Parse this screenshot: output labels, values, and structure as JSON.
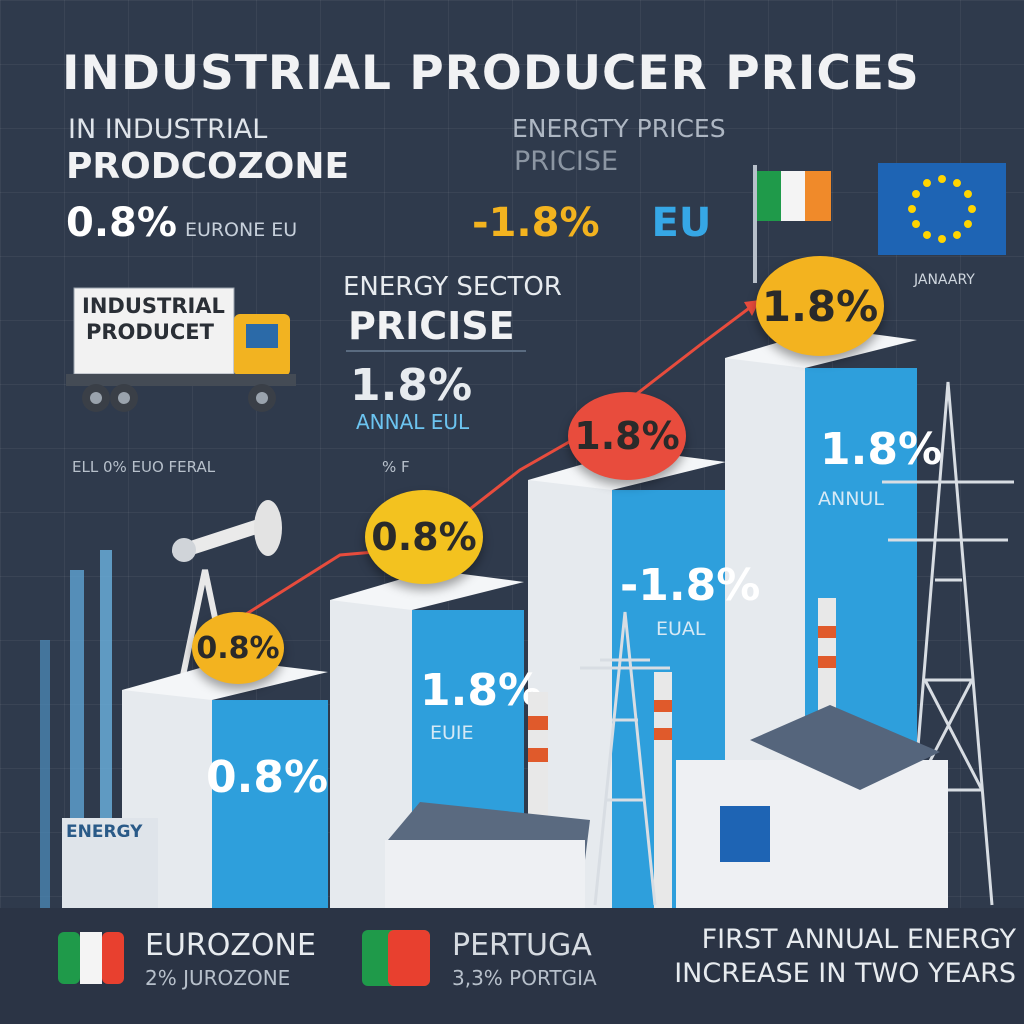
{
  "title": "INDUSTRIAL PRODUCER PRICES",
  "top_left": {
    "line1": "IN INDUSTRIAL",
    "line2": "PRODCOZONE",
    "value": "0.8%",
    "sub": "EURONE EU"
  },
  "top_mid": {
    "line1": "ENERGTY    PRICES",
    "line2": "PRICISE",
    "value": "-1.8%",
    "region": "EU"
  },
  "flag_label": "JANAARY",
  "truck_sign": {
    "line1": "INDUSTRIAL",
    "line2": "PRODUCET"
  },
  "energy_sector": {
    "line1": "ENERGY SECTOR",
    "line2": "PRICISE",
    "value": "1.8%",
    "sub": "ANNAL  EUL"
  },
  "mid_left_label": "ELL 0% EUO FERAL",
  "mid_mid_label": "% F",
  "bars": [
    {
      "value_label": "0.8%",
      "sub_label": "",
      "ball_label": "0.8%",
      "ball_color": "#f3b31f"
    },
    {
      "value_label": "1.8%",
      "sub_label": "EUIE",
      "ball_label": "0.8%",
      "ball_color": "#f3c21f"
    },
    {
      "value_label": "-1.8%",
      "sub_label": "EUAL",
      "ball_label": "1.8%",
      "ball_color": "#e84c3d"
    },
    {
      "value_label": "1.8%",
      "sub_label": "ANNUL",
      "ball_label": "1.8%",
      "ball_color": "#f3b31f"
    }
  ],
  "building_sign": "ENERGY",
  "footer": {
    "left_title": "EUROZONE",
    "left_sub": "2% JUROZONE",
    "mid_title": "PERTUGA",
    "mid_sub": "3,3% PORTGIA",
    "right_line1": "FIRST ANNUAL ENERGY",
    "right_line2": "INCREASE IN TWO YEARS"
  },
  "colors": {
    "background": "#2f3a4c",
    "bar_blue": "#2e9fdc",
    "accent_yellow": "#f3b31f",
    "accent_red": "#e84c3d",
    "eu_blue": "#1e64b4",
    "eu_star": "#ffd400"
  }
}
